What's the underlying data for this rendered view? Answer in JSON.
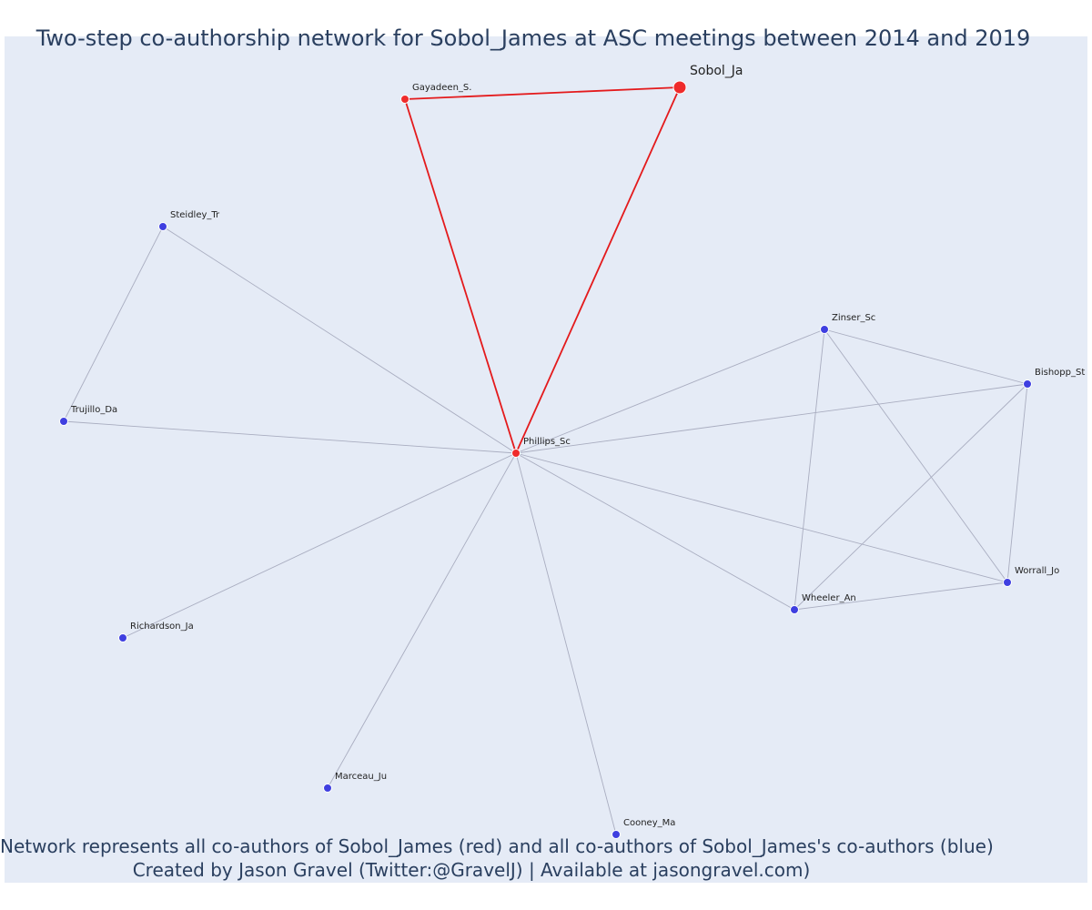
{
  "title": "Two-step co-authorship network for Sobol_James at ASC meetings between 2014 and 2019",
  "caption": {
    "line1": "Network represents all co-authors of Sobol_James (red) and all co-authors of Sobol_James's co-authors (blue)",
    "line2": "Created by Jason Gravel (Twitter:@GravelJ) | Available at jasongravel.com)"
  },
  "colors": {
    "background": "#e5ebf6",
    "first_step_node": "#ef2b2b",
    "second_step_node": "#3f3fe0",
    "first_step_edge": "#e41a1c",
    "second_step_edge": "#a9adc0",
    "text": "#2a3f5f",
    "label": "#222222"
  },
  "network": {
    "ego": "Sobol_Ja",
    "nodes": [
      {
        "id": "Sobol_Ja",
        "label": "Sobol_Ja",
        "group": "ego"
      },
      {
        "id": "Gayadeen_S.",
        "label": "Gayadeen_S.",
        "group": "coauthor"
      },
      {
        "id": "Phillips_Sc",
        "label": "Phillips_Sc",
        "group": "coauthor"
      },
      {
        "id": "Steidley_Tr",
        "label": "Steidley_Tr",
        "group": "second"
      },
      {
        "id": "Trujillo_Da",
        "label": "Trujillo_Da",
        "group": "second"
      },
      {
        "id": "Richardson_Ja",
        "label": "Richardson_Ja",
        "group": "second"
      },
      {
        "id": "Marceau_Ju",
        "label": "Marceau_Ju",
        "group": "second"
      },
      {
        "id": "Cooney_Ma",
        "label": "Cooney_Ma",
        "group": "second"
      },
      {
        "id": "Zinser_Sc",
        "label": "Zinser_Sc",
        "group": "second"
      },
      {
        "id": "Bishopp_St",
        "label": "Bishopp_St",
        "group": "second"
      },
      {
        "id": "Worrall_Jo",
        "label": "Worrall_Jo",
        "group": "second"
      },
      {
        "id": "Wheeler_An",
        "label": "Wheeler_An",
        "group": "second"
      }
    ],
    "edges": [
      {
        "source": "Sobol_Ja",
        "target": "Gayadeen_S.",
        "step": 1
      },
      {
        "source": "Sobol_Ja",
        "target": "Phillips_Sc",
        "step": 1
      },
      {
        "source": "Gayadeen_S.",
        "target": "Phillips_Sc",
        "step": 1
      },
      {
        "source": "Phillips_Sc",
        "target": "Steidley_Tr",
        "step": 2
      },
      {
        "source": "Phillips_Sc",
        "target": "Trujillo_Da",
        "step": 2
      },
      {
        "source": "Steidley_Tr",
        "target": "Trujillo_Da",
        "step": 2
      },
      {
        "source": "Phillips_Sc",
        "target": "Richardson_Ja",
        "step": 2
      },
      {
        "source": "Phillips_Sc",
        "target": "Marceau_Ju",
        "step": 2
      },
      {
        "source": "Phillips_Sc",
        "target": "Cooney_Ma",
        "step": 2
      },
      {
        "source": "Phillips_Sc",
        "target": "Zinser_Sc",
        "step": 2
      },
      {
        "source": "Phillips_Sc",
        "target": "Bishopp_St",
        "step": 2
      },
      {
        "source": "Phillips_Sc",
        "target": "Worrall_Jo",
        "step": 2
      },
      {
        "source": "Phillips_Sc",
        "target": "Wheeler_An",
        "step": 2
      },
      {
        "source": "Zinser_Sc",
        "target": "Bishopp_St",
        "step": 2
      },
      {
        "source": "Zinser_Sc",
        "target": "Worrall_Jo",
        "step": 2
      },
      {
        "source": "Zinser_Sc",
        "target": "Wheeler_An",
        "step": 2
      },
      {
        "source": "Bishopp_St",
        "target": "Worrall_Jo",
        "step": 2
      },
      {
        "source": "Bishopp_St",
        "target": "Wheeler_An",
        "step": 2
      },
      {
        "source": "Worrall_Jo",
        "target": "Wheeler_An",
        "step": 2
      }
    ]
  }
}
